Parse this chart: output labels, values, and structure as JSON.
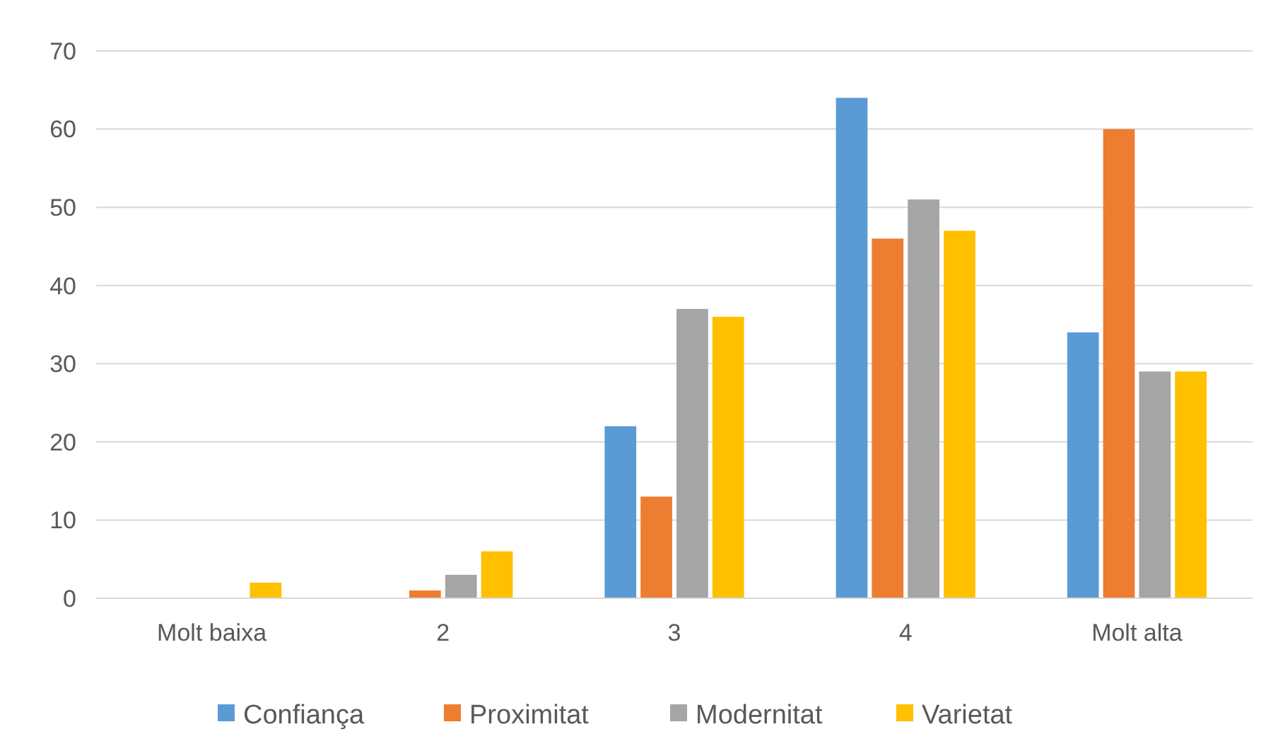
{
  "chart_data": {
    "type": "bar",
    "categories": [
      "Molt baixa",
      "2",
      "3",
      "4",
      "Molt alta"
    ],
    "series": [
      {
        "name": "Confiança",
        "color": "#5b9bd5",
        "values": [
          0,
          0,
          22,
          64,
          34
        ]
      },
      {
        "name": "Proximitat",
        "color": "#ed7d31",
        "values": [
          0,
          1,
          13,
          46,
          60
        ]
      },
      {
        "name": "Modernitat",
        "color": "#a5a5a5",
        "values": [
          0,
          3,
          37,
          51,
          29
        ]
      },
      {
        "name": "Varietat",
        "color": "#ffc000",
        "values": [
          2,
          6,
          36,
          47,
          29
        ]
      }
    ],
    "ylim": [
      0,
      70
    ],
    "yticks": [
      0,
      10,
      20,
      30,
      40,
      50,
      60,
      70
    ],
    "grid": "y",
    "legend": "bottom"
  }
}
